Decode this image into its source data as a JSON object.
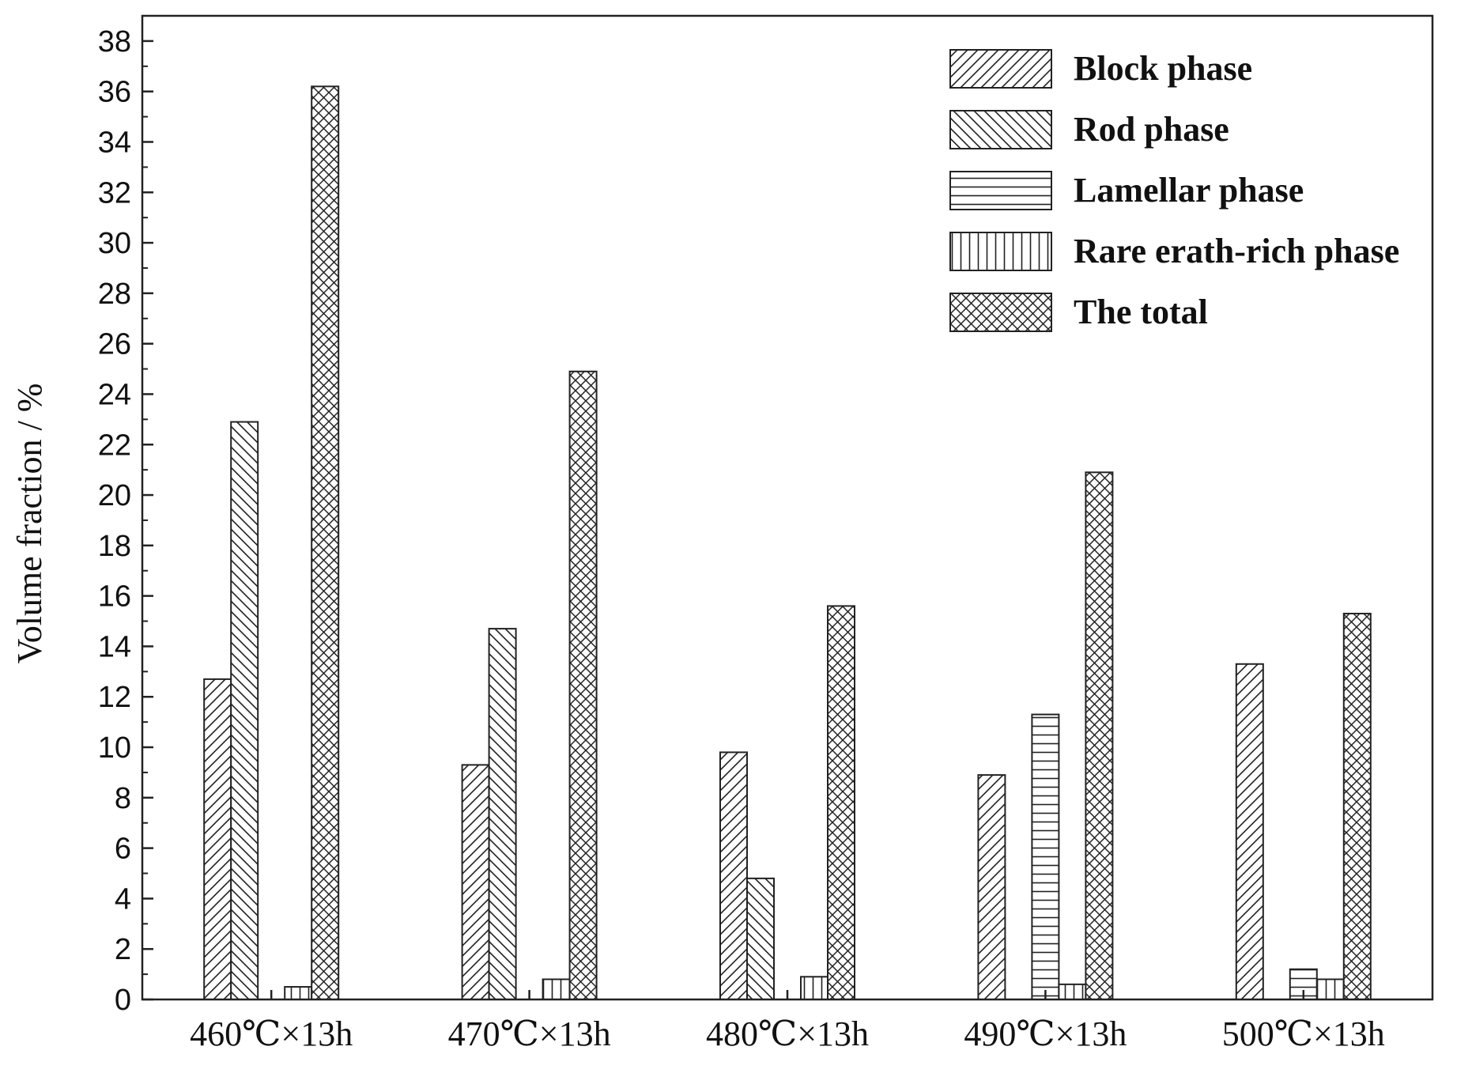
{
  "chart_data": {
    "type": "bar",
    "title": "",
    "xlabel": "",
    "ylabel": "Volume fraction / %",
    "ylim": [
      0,
      39
    ],
    "yticks": [
      0,
      2,
      4,
      6,
      8,
      10,
      12,
      14,
      16,
      18,
      20,
      22,
      24,
      26,
      28,
      30,
      32,
      34,
      36,
      38
    ],
    "grid": false,
    "legend_position": "top-right",
    "categories": [
      "460℃×13h",
      "470℃×13h",
      "480℃×13h",
      "490℃×13h",
      "500℃×13h"
    ],
    "series": [
      {
        "name": "Block phase",
        "pattern": "diagonal-up",
        "values": [
          12.7,
          9.3,
          9.8,
          8.9,
          13.3
        ]
      },
      {
        "name": "Rod phase",
        "pattern": "diagonal-down",
        "values": [
          22.9,
          14.7,
          4.8,
          0,
          0
        ]
      },
      {
        "name": "Lamellar phase",
        "pattern": "horizontal",
        "values": [
          0,
          0,
          0,
          11.3,
          1.2
        ]
      },
      {
        "name": "Rare erath-rich phase",
        "pattern": "vertical",
        "values": [
          0.5,
          0.8,
          0.9,
          0.6,
          0.8
        ]
      },
      {
        "name": "The total",
        "pattern": "crosshatch",
        "values": [
          36.2,
          24.9,
          15.6,
          20.9,
          15.3
        ]
      }
    ],
    "colors": {
      "stroke": "#222222",
      "fill": "#ffffff"
    }
  }
}
